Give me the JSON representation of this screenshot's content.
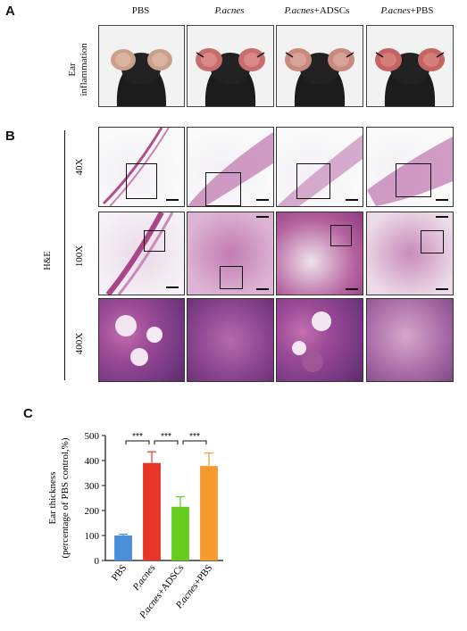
{
  "panel_labels": {
    "a": "A",
    "b": "B",
    "c": "C"
  },
  "columns": [
    {
      "plain": "PBS",
      "italic": "",
      "suffix": ""
    },
    {
      "plain": "",
      "italic": "P.acnes",
      "suffix": ""
    },
    {
      "plain": "",
      "italic": "P.acnes",
      "suffix": "+ADSCs"
    },
    {
      "plain": "",
      "italic": "P.acnes",
      "suffix": "+PBS"
    }
  ],
  "row_a_label": {
    "line1": "Ear",
    "line2": "inflammation"
  },
  "stain_label": "H&E",
  "magnifications": [
    "40X",
    "100X",
    "400X"
  ],
  "chart_data": {
    "type": "bar",
    "categories": [
      "PBS",
      "P.acnes",
      "P.acnes+ADSCs",
      "P.acnes+PBS"
    ],
    "values": [
      100,
      390,
      215,
      378
    ],
    "errors": [
      5,
      45,
      40,
      52
    ],
    "colors": [
      "#4a90d9",
      "#e8352a",
      "#66cc1f",
      "#f59a2f"
    ],
    "ylabel_line1": "Ear thickness",
    "ylabel_line2": "(percentage of PBS control,%)",
    "ylim": [
      0,
      500
    ],
    "yticks": [
      "0",
      "100",
      "200",
      "300",
      "400",
      "500"
    ],
    "significance": [
      {
        "from": 0,
        "to": 1,
        "label": "***"
      },
      {
        "from": 1,
        "to": 2,
        "label": "***"
      },
      {
        "from": 2,
        "to": 3,
        "label": "***"
      }
    ]
  }
}
